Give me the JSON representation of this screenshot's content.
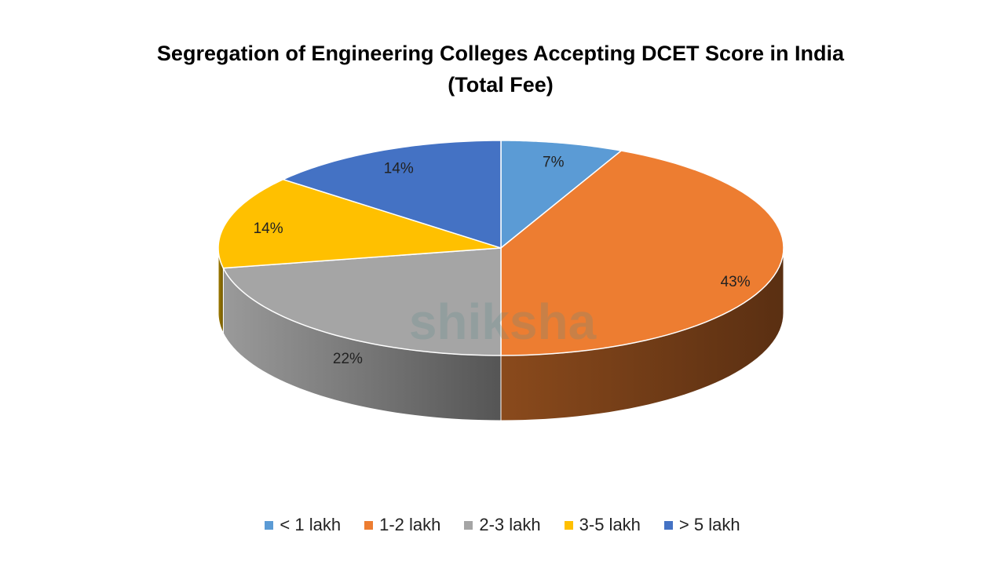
{
  "chart_data": {
    "type": "pie",
    "title_line1": "Segregation of Engineering Colleges Accepting DCET Score in India",
    "title_line2": "(Total Fee)",
    "categories": [
      "< 1 lakh",
      "1-2 lakh",
      "2-3 lakh",
      "3-5 lakh",
      "> 5 lakh"
    ],
    "values": [
      7,
      43,
      22,
      14,
      14
    ],
    "labels": [
      "7%",
      "43%",
      "22%",
      "14%",
      "14%"
    ],
    "colors": [
      "#5B9BD5",
      "#ED7D31",
      "#A5A5A5",
      "#FFC000",
      "#4472C4"
    ],
    "side_colors": [
      [
        "#3f6f9c",
        "#2a4d6e"
      ],
      [
        "#8a4a1c",
        "#5a2f12"
      ],
      [
        "#9a9a9a",
        "#555555"
      ],
      [
        "#a07c00",
        "#705700"
      ],
      [
        "#2f4f8a",
        "#1f3560"
      ]
    ],
    "legend_position": "bottom",
    "style": "3d"
  },
  "watermark": "shiksha"
}
